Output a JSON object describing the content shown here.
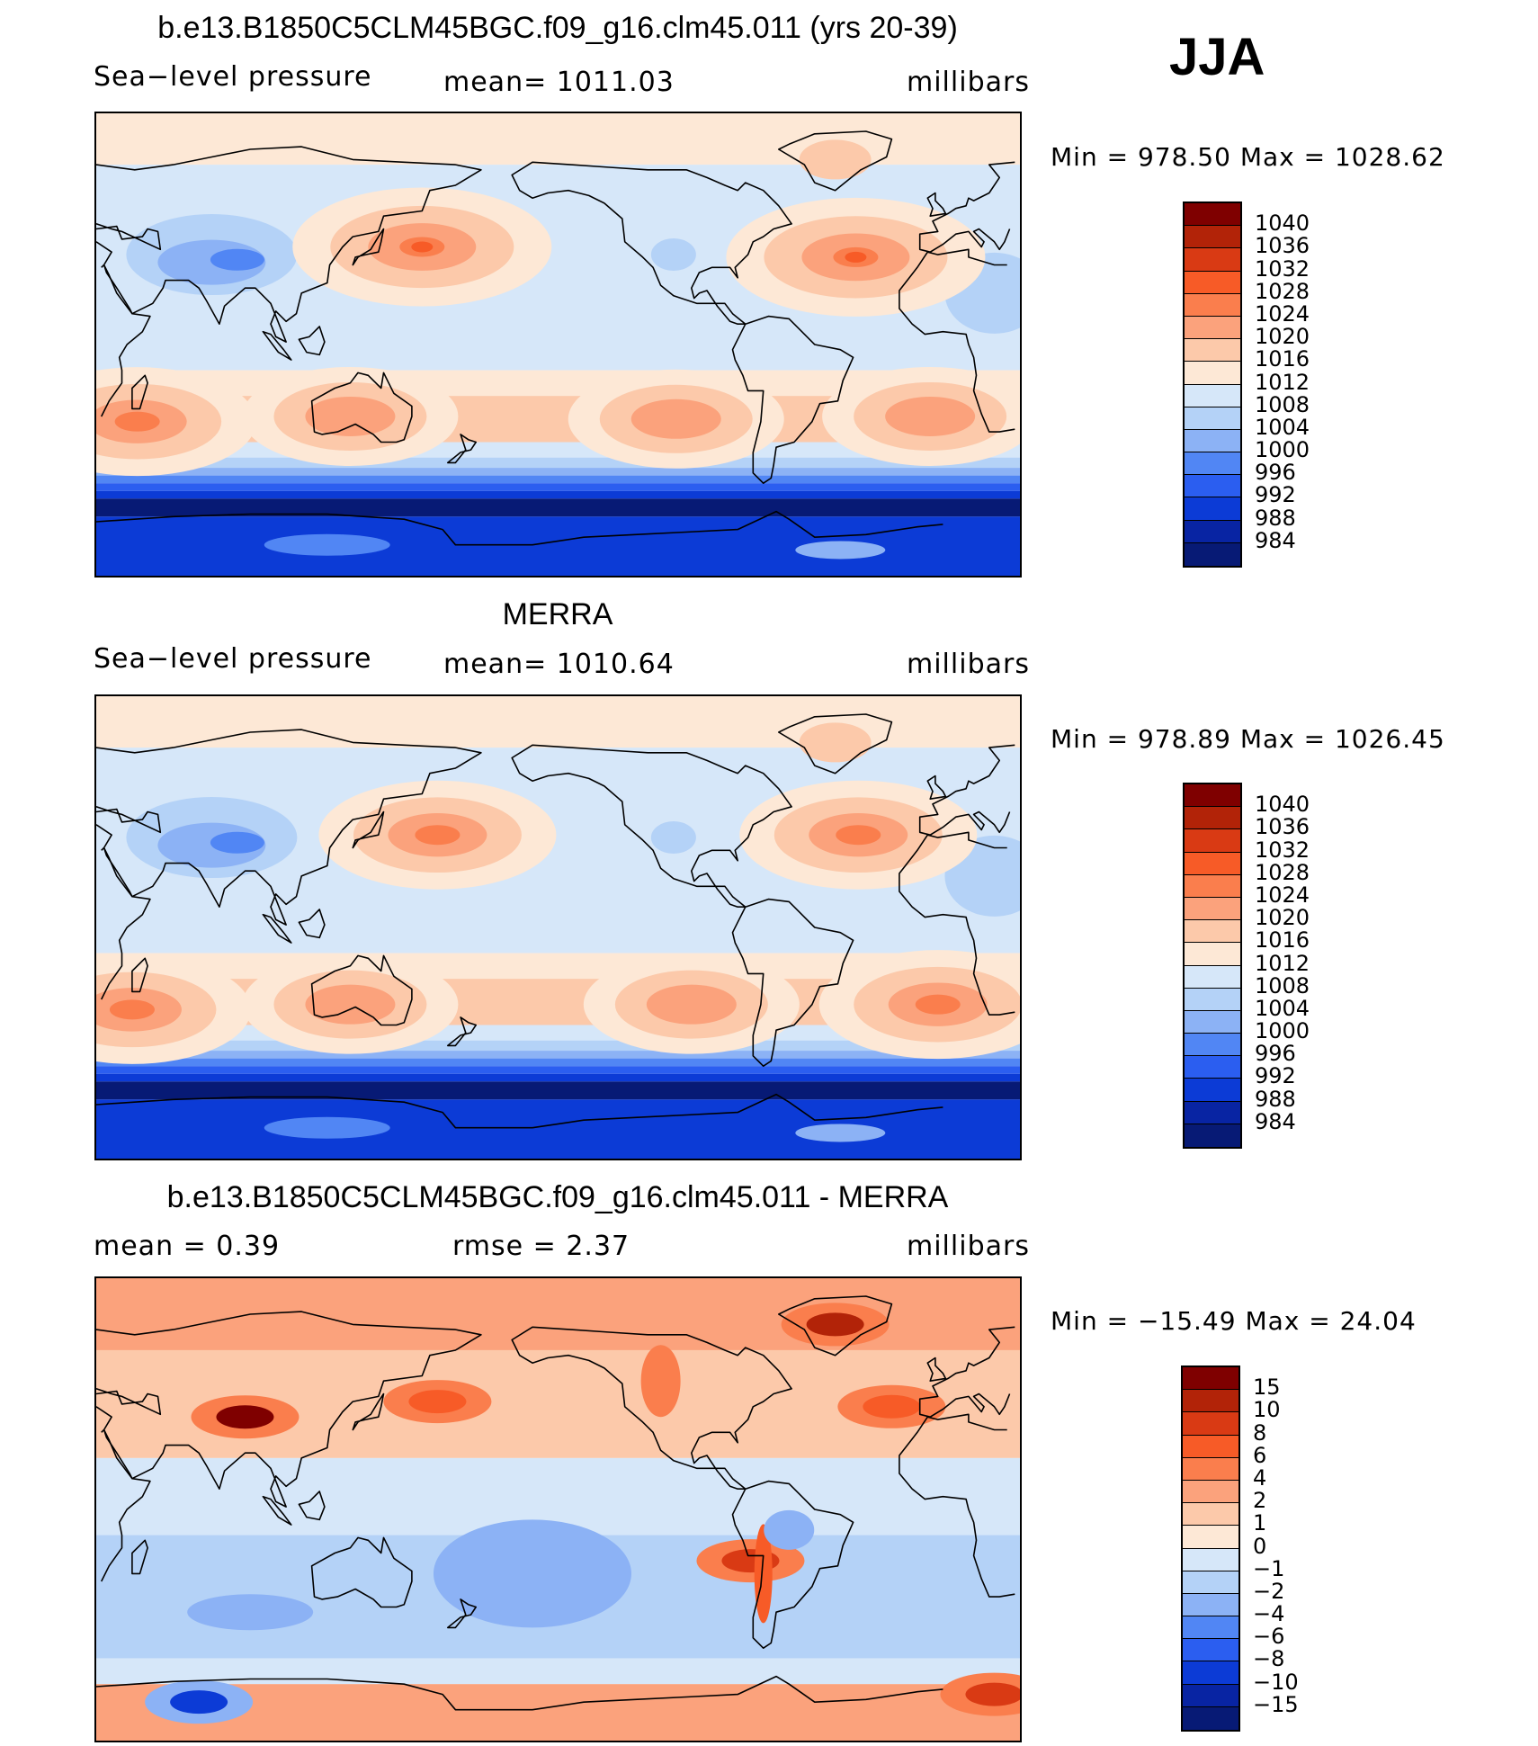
{
  "season_label": "JJA",
  "panels": [
    {
      "title": "b.e13.B1850C5CLM45BGC.f09_g16.clm45.011 (yrs 20-39)",
      "left_text": "Sea−level pressure",
      "middle_text": "mean=  1011.03",
      "right_text": "millibars",
      "minmax": "Min  =  978.50  Max  =  1028.62",
      "kind": "slp",
      "highs": [
        {
          "lon": 157,
          "lat": 38,
          "level": 7
        },
        {
          "lon": 326,
          "lat": 34,
          "level": 7
        },
        {
          "lon": 46,
          "lat": -30,
          "level": 6
        },
        {
          "lon": 129,
          "lat": -28,
          "level": 5
        },
        {
          "lon": 256,
          "lat": -29,
          "level": 5
        },
        {
          "lon": 355,
          "lat": -28,
          "level": 5
        }
      ]
    },
    {
      "title": "MERRA",
      "left_text": "Sea−level pressure",
      "middle_text": "mean=  1010.64",
      "right_text": "millibars",
      "minmax": "Min  =  978.89  Max  =  1026.45",
      "kind": "slp",
      "highs": [
        {
          "lon": 163,
          "lat": 36,
          "level": 6
        },
        {
          "lon": 327,
          "lat": 36,
          "level": 6
        },
        {
          "lon": 44,
          "lat": -32,
          "level": 6
        },
        {
          "lon": 129,
          "lat": -30,
          "level": 5
        },
        {
          "lon": 262,
          "lat": -30,
          "level": 5
        },
        {
          "lon": 358,
          "lat": -30,
          "level": 6
        }
      ]
    },
    {
      "title": "b.e13.B1850C5CLM45BGC.f09_g16.clm45.011 - MERRA",
      "left_text": "mean =     0.39",
      "middle_text": "rmse =     2.37",
      "right_text": "millibars",
      "minmax": "Min  = −15.49  Max  =    24.04",
      "kind": "diff",
      "features": [
        {
          "lon": 88,
          "lat": 36,
          "level": 15
        },
        {
          "lon": 318,
          "lat": 72,
          "level": 10
        },
        {
          "lon": 163,
          "lat": 42,
          "level": 6
        },
        {
          "lon": 340,
          "lat": 40,
          "level": 6
        },
        {
          "lon": 285,
          "lat": -20,
          "level": 8
        },
        {
          "lon": 70,
          "lat": -75,
          "level": -10
        },
        {
          "lon": 20,
          "lat": -72,
          "level": 8
        }
      ]
    }
  ],
  "colorbars": [
    {
      "labels": [
        "1040",
        "1036",
        "1032",
        "1028",
        "1024",
        "1020",
        "1016",
        "1012",
        "1008",
        "1004",
        "1000",
        "996",
        "992",
        "988",
        "984"
      ],
      "colors": [
        "#7f0000",
        "#b22308",
        "#d93a14",
        "#f75b27",
        "#fa7e4d",
        "#fba27c",
        "#fcc9aa",
        "#fde8d6",
        "#d6e7f9",
        "#b4d2f7",
        "#8cb2f5",
        "#5186f4",
        "#2b5ef0",
        "#0c3bd6",
        "#0824a3",
        "#071a75"
      ]
    },
    {
      "labels": [
        "1040",
        "1036",
        "1032",
        "1028",
        "1024",
        "1020",
        "1016",
        "1012",
        "1008",
        "1004",
        "1000",
        "996",
        "992",
        "988",
        "984"
      ],
      "colors": [
        "#7f0000",
        "#b22308",
        "#d93a14",
        "#f75b27",
        "#fa7e4d",
        "#fba27c",
        "#fcc9aa",
        "#fde8d6",
        "#d6e7f9",
        "#b4d2f7",
        "#8cb2f5",
        "#5186f4",
        "#2b5ef0",
        "#0c3bd6",
        "#0824a3",
        "#071a75"
      ]
    },
    {
      "labels": [
        "15",
        "10",
        "8",
        "6",
        "4",
        "2",
        "1",
        "0",
        "−1",
        "−2",
        "−4",
        "−6",
        "−8",
        "−10",
        "−15"
      ],
      "colors": [
        "#7f0000",
        "#b22308",
        "#d93a14",
        "#f75b27",
        "#fa7e4d",
        "#fba27c",
        "#fcc9aa",
        "#fde8d6",
        "#d6e7f9",
        "#b4d2f7",
        "#8cb2f5",
        "#5186f4",
        "#2b5ef0",
        "#0c3bd6",
        "#0824a3",
        "#071a75"
      ]
    }
  ]
}
